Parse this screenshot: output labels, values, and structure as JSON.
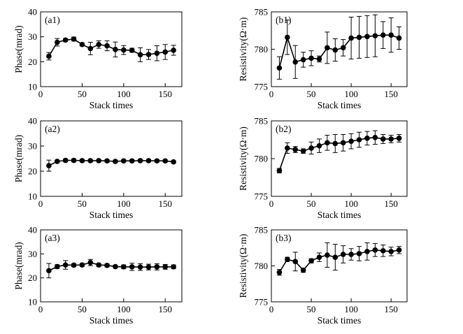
{
  "chart_data": [
    {
      "type": "line",
      "label": "(a1)",
      "xlabel": "Stack times",
      "ylabel": "Phase(mrad)",
      "xlim": [
        0,
        170
      ],
      "ylim": [
        10,
        40
      ],
      "xticks": [
        0,
        50,
        100,
        150
      ],
      "yticks": [
        10,
        20,
        30,
        40
      ],
      "x": [
        10,
        20,
        30,
        40,
        50,
        60,
        70,
        80,
        90,
        100,
        110,
        120,
        130,
        140,
        150,
        160
      ],
      "y": [
        22.2,
        27.8,
        28.7,
        29.1,
        26.9,
        25.3,
        26.9,
        26.4,
        24.9,
        24.7,
        24.6,
        22.8,
        22.9,
        23.4,
        23.9,
        24.6
      ],
      "err": [
        1.5,
        1.5,
        0.6,
        0.8,
        0.6,
        2.5,
        1.5,
        2.0,
        3.0,
        1.8,
        0.8,
        2.8,
        2.0,
        3.0,
        3.0,
        2.0
      ]
    },
    {
      "type": "line",
      "label": "(b1)",
      "xlabel": "Stack times",
      "ylabel": "Resistivity(Ω·m)",
      "xlim": [
        0,
        170
      ],
      "ylim": [
        775,
        785
      ],
      "xticks": [
        0,
        50,
        100,
        150
      ],
      "yticks": [
        775,
        780,
        785
      ],
      "x": [
        10,
        20,
        30,
        40,
        50,
        60,
        70,
        80,
        90,
        100,
        110,
        120,
        130,
        140,
        150,
        160
      ],
      "y": [
        777.5,
        781.6,
        778.3,
        778.6,
        778.8,
        778.7,
        780.2,
        779.9,
        780.2,
        781.5,
        781.6,
        781.7,
        781.8,
        781.9,
        781.9,
        781.5
      ],
      "err": [
        1.5,
        2.3,
        2.2,
        1.0,
        1.0,
        0.4,
        2.1,
        1.5,
        1.1,
        2.8,
        2.8,
        2.8,
        2.8,
        1.8,
        2.3,
        1.5
      ]
    },
    {
      "type": "line",
      "label": "(a2)",
      "xlabel": "Stack times",
      "ylabel": "Phase(mrad)",
      "xlim": [
        0,
        170
      ],
      "ylim": [
        10,
        40
      ],
      "xticks": [
        0,
        50,
        100,
        150
      ],
      "yticks": [
        10,
        20,
        30,
        40
      ],
      "x": [
        10,
        20,
        30,
        40,
        50,
        60,
        70,
        80,
        90,
        100,
        110,
        120,
        130,
        140,
        150,
        160
      ],
      "y": [
        22.2,
        23.9,
        24.3,
        24.3,
        24.2,
        24.2,
        24.2,
        24.1,
        23.9,
        24.1,
        24.1,
        24.2,
        24.2,
        24.1,
        24.1,
        23.7
      ],
      "err": [
        2.2,
        0.5,
        0.6,
        0.6,
        0.5,
        0.5,
        0.5,
        0.5,
        0.5,
        0.5,
        0.5,
        0.5,
        0.5,
        0.5,
        0.5,
        0.5
      ]
    },
    {
      "type": "line",
      "label": "(b2)",
      "xlabel": "Stack times",
      "ylabel": "Resistivity(Ω·m)",
      "xlim": [
        0,
        170
      ],
      "ylim": [
        775,
        785
      ],
      "xticks": [
        0,
        50,
        100,
        150
      ],
      "yticks": [
        775,
        780,
        785
      ],
      "x": [
        10,
        20,
        30,
        40,
        50,
        60,
        70,
        80,
        90,
        100,
        110,
        120,
        130,
        140,
        150,
        160
      ],
      "y": [
        778.4,
        781.4,
        781.2,
        781.0,
        781.4,
        781.7,
        782.1,
        782.0,
        782.1,
        782.3,
        782.5,
        782.7,
        782.8,
        782.6,
        782.6,
        782.7
      ],
      "err": [
        0.3,
        0.7,
        0.4,
        0.3,
        0.8,
        0.9,
        1.0,
        1.2,
        1.1,
        1.0,
        1.0,
        0.9,
        0.9,
        0.6,
        0.5,
        0.5
      ]
    },
    {
      "type": "line",
      "label": "(a3)",
      "xlabel": "Stack times",
      "ylabel": "Phase(mrad)",
      "xlim": [
        0,
        170
      ],
      "ylim": [
        10,
        40
      ],
      "xticks": [
        0,
        50,
        100,
        150
      ],
      "yticks": [
        10,
        20,
        30,
        40
      ],
      "x": [
        10,
        20,
        30,
        40,
        50,
        60,
        70,
        80,
        90,
        100,
        110,
        120,
        130,
        140,
        150,
        160
      ],
      "y": [
        23.0,
        24.7,
        25.4,
        25.3,
        25.4,
        26.4,
        25.4,
        25.2,
        24.7,
        24.6,
        24.6,
        24.5,
        24.5,
        24.6,
        24.6,
        24.6
      ],
      "err": [
        3.0,
        0.8,
        1.8,
        0.6,
        0.6,
        1.3,
        0.6,
        0.6,
        0.6,
        0.8,
        1.5,
        1.4,
        1.2,
        1.3,
        1.0,
        0.8
      ]
    },
    {
      "type": "line",
      "label": "(b3)",
      "xlabel": "Stack times",
      "ylabel": "Resistivity(Ω·m)",
      "xlim": [
        0,
        170
      ],
      "ylim": [
        775,
        785
      ],
      "xticks": [
        0,
        50,
        100,
        150
      ],
      "yticks": [
        775,
        780,
        785
      ],
      "x": [
        10,
        20,
        30,
        40,
        50,
        60,
        70,
        80,
        90,
        100,
        110,
        120,
        130,
        140,
        150,
        160
      ],
      "y": [
        779.1,
        780.9,
        780.6,
        779.4,
        780.7,
        781.2,
        781.5,
        781.2,
        781.6,
        781.6,
        781.7,
        782.0,
        782.2,
        782.1,
        782.0,
        782.2
      ],
      "err": [
        0.4,
        0.3,
        1.3,
        0.3,
        0.3,
        0.6,
        1.7,
        1.8,
        1.2,
        0.8,
        1.0,
        1.2,
        0.9,
        0.8,
        0.6,
        0.5
      ]
    }
  ]
}
